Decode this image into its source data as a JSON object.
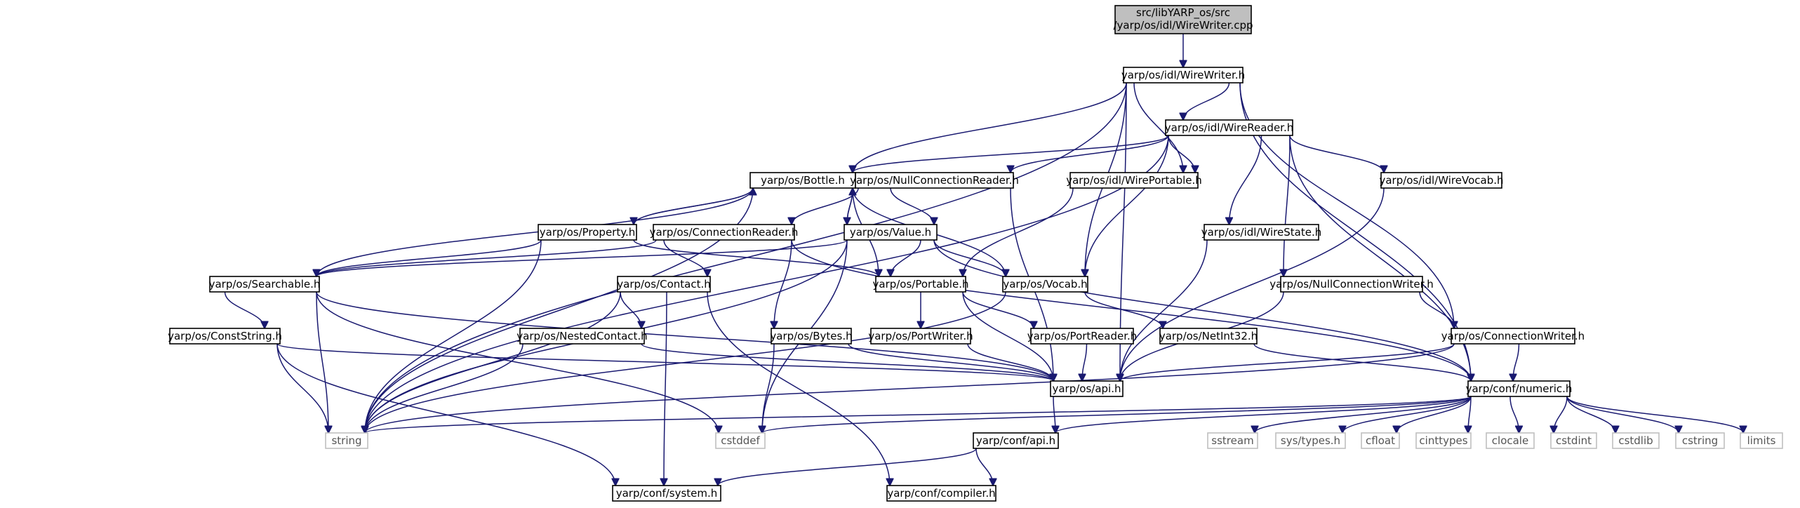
{
  "diagram": {
    "type": "include-dependency-graph",
    "root": [
      "src/libYARP_os/src",
      "/yarp/os/idl/WireWriter.cpp"
    ],
    "nodes": {
      "wirewriter_cpp": "src/libYARP_os/src /yarp/os/idl/WireWriter.cpp",
      "wirewriter_h": "yarp/os/idl/WireWriter.h",
      "wirereader_h": "yarp/os/idl/WireReader.h",
      "bottle_h": "yarp/os/Bottle.h",
      "nullconnectionreader_h": "yarp/os/NullConnectionReader.h",
      "wireportable_h": "yarp/os/idl/WirePortable.h",
      "wirevocab_h": "yarp/os/idl/WireVocab.h",
      "property_h": "yarp/os/Property.h",
      "connectionreader_h": "yarp/os/ConnectionReader.h",
      "value_h": "yarp/os/Value.h",
      "wirestate_h": "yarp/os/idl/WireState.h",
      "searchable_h": "yarp/os/Searchable.h",
      "contact_h": "yarp/os/Contact.h",
      "portable_h": "yarp/os/Portable.h",
      "vocab_h": "yarp/os/Vocab.h",
      "nullconnectionwriter_h": "yarp/os/NullConnectionWriter.h",
      "conststring_h": "yarp/os/ConstString.h",
      "nestedcontact_h": "yarp/os/NestedContact.h",
      "bytes_h": "yarp/os/Bytes.h",
      "portwriter_h": "yarp/os/PortWriter.h",
      "portreader_h": "yarp/os/PortReader.h",
      "netint32_h": "yarp/os/NetInt32.h",
      "connectionwriter_h": "yarp/os/ConnectionWriter.h",
      "os_api_h": "yarp/os/api.h",
      "numeric_h": "yarp/conf/numeric.h",
      "string": "string",
      "cstddef": "cstddef",
      "sstream": "sstream",
      "systypes_h": "sys/types.h",
      "cfloat": "cfloat",
      "cinttypes": "cinttypes",
      "clocale": "clocale",
      "cstdint": "cstdint",
      "cstdlib": "cstdlib",
      "cstring": "cstring",
      "limits": "limits",
      "conf_api_h": "yarp/conf/api.h",
      "system_h": "yarp/conf/system.h",
      "compiler_h": "yarp/conf/compiler.h"
    }
  },
  "colors": {
    "edge": "#191970",
    "root_fill": "#bfbfbf",
    "node_border": "#000000",
    "system_border": "#bfbfbf",
    "background": "#ffffff"
  }
}
